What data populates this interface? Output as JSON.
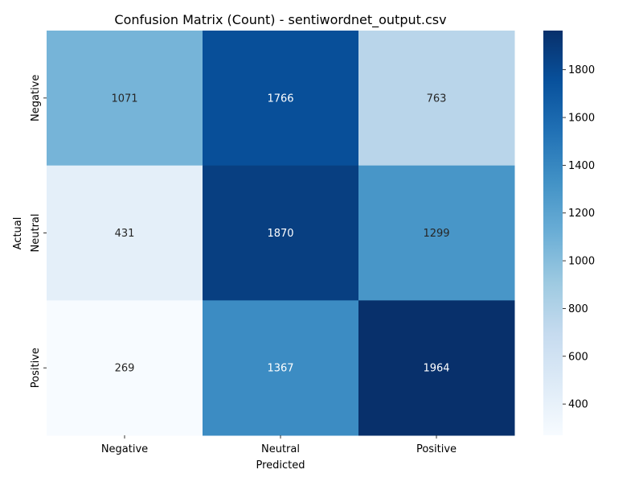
{
  "chart_data": {
    "type": "heatmap",
    "title": "Confusion Matrix (Count) - sentiwordnet_output.csv",
    "xlabel": "Predicted",
    "ylabel": "Actual",
    "x_categories": [
      "Negative",
      "Neutral",
      "Positive"
    ],
    "y_categories": [
      "Negative",
      "Neutral",
      "Positive"
    ],
    "values": [
      [
        1071,
        1766,
        763
      ],
      [
        431,
        1870,
        1299
      ],
      [
        269,
        1367,
        1964
      ]
    ],
    "colormap": "Blues",
    "colorbar": {
      "min": 269,
      "max": 1964,
      "ticks": [
        400,
        600,
        800,
        1000,
        1200,
        1400,
        1600,
        1800
      ]
    }
  }
}
